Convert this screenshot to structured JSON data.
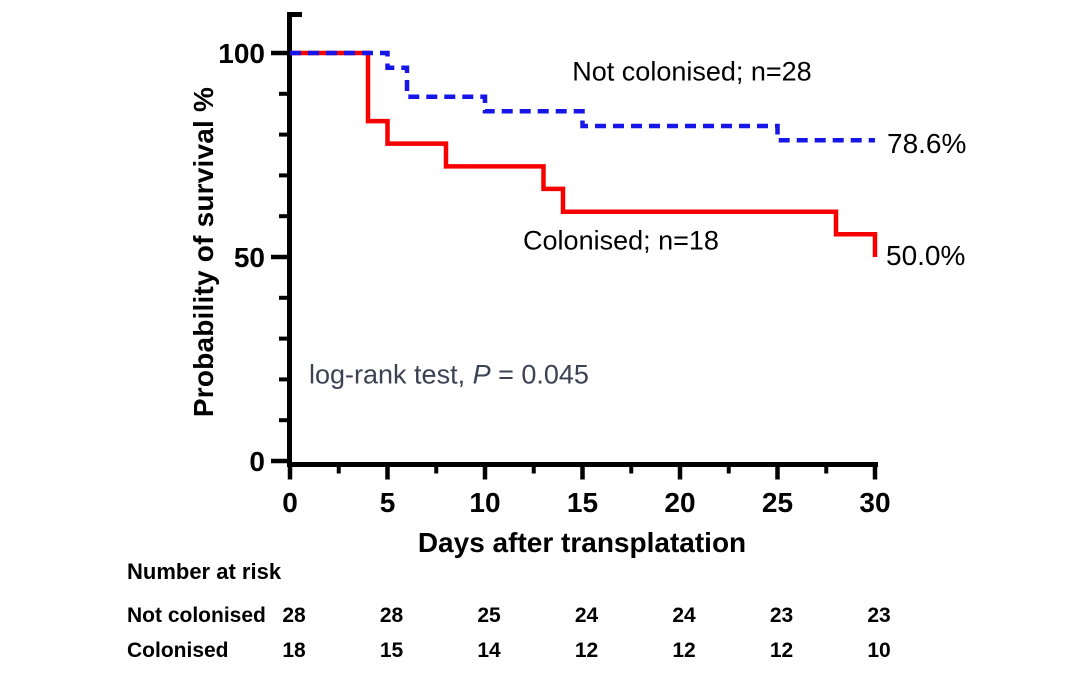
{
  "chart_data": {
    "type": "line",
    "variant": "kaplan-meier-survival-step",
    "title": "",
    "xlabel": "Days after transplatation",
    "ylabel": "Probability of survival %",
    "xlim": [
      0,
      30
    ],
    "ylim": [
      0,
      110
    ],
    "x_major_ticks": [
      0,
      5,
      10,
      15,
      20,
      25,
      30
    ],
    "x_minor_ticks": [
      2.5,
      7.5,
      12.5,
      17.5,
      22.5,
      27.5
    ],
    "y_major_ticks": [
      0,
      50,
      100
    ],
    "y_minor_ticks": [
      10,
      20,
      30,
      40,
      60,
      70,
      80,
      90
    ],
    "grid": false,
    "legend_position": "labels-on-plot",
    "series": [
      {
        "name": "Not colonised",
        "label": "Not colonised; n=28",
        "end_label": "78.6%",
        "color": "#1616E8",
        "style": "dashed",
        "points": [
          [
            0,
            100
          ],
          [
            5,
            100
          ],
          [
            5,
            96.4
          ],
          [
            6,
            96.4
          ],
          [
            6,
            89.3
          ],
          [
            10,
            89.3
          ],
          [
            10,
            85.7
          ],
          [
            15,
            85.7
          ],
          [
            15,
            82.1
          ],
          [
            25,
            82.1
          ],
          [
            25,
            78.6
          ],
          [
            30,
            78.6
          ]
        ]
      },
      {
        "name": "Colonised",
        "label": "Colonised; n=18",
        "end_label": "50.0%",
        "color": "#F70000",
        "style": "solid",
        "points": [
          [
            0,
            100
          ],
          [
            4,
            100
          ],
          [
            4,
            83.3
          ],
          [
            5,
            83.3
          ],
          [
            5,
            77.8
          ],
          [
            8,
            77.8
          ],
          [
            8,
            72.2
          ],
          [
            13,
            72.2
          ],
          [
            13,
            66.7
          ],
          [
            14,
            66.7
          ],
          [
            14,
            61.1
          ],
          [
            28,
            61.1
          ],
          [
            28,
            55.6
          ],
          [
            30,
            55.6
          ],
          [
            30,
            50.0
          ]
        ]
      }
    ],
    "stats": {
      "prefix": "log-rank test, ",
      "p_label": "P",
      "p_suffix": " = 0.045",
      "text_color": "#3C4254"
    }
  },
  "risk_table": {
    "title": "Number at risk",
    "days": [
      0,
      5,
      10,
      15,
      20,
      25,
      30
    ],
    "rows": [
      {
        "label": "Not colonised",
        "values": [
          28,
          28,
          25,
          24,
          24,
          23,
          23
        ]
      },
      {
        "label": "Colonised",
        "values": [
          18,
          15,
          14,
          12,
          12,
          12,
          10
        ]
      }
    ]
  },
  "colors": {
    "axis": "#000000",
    "not_colonised": "#1616E8",
    "colonised": "#F70000",
    "stats_text": "#3C4254"
  }
}
